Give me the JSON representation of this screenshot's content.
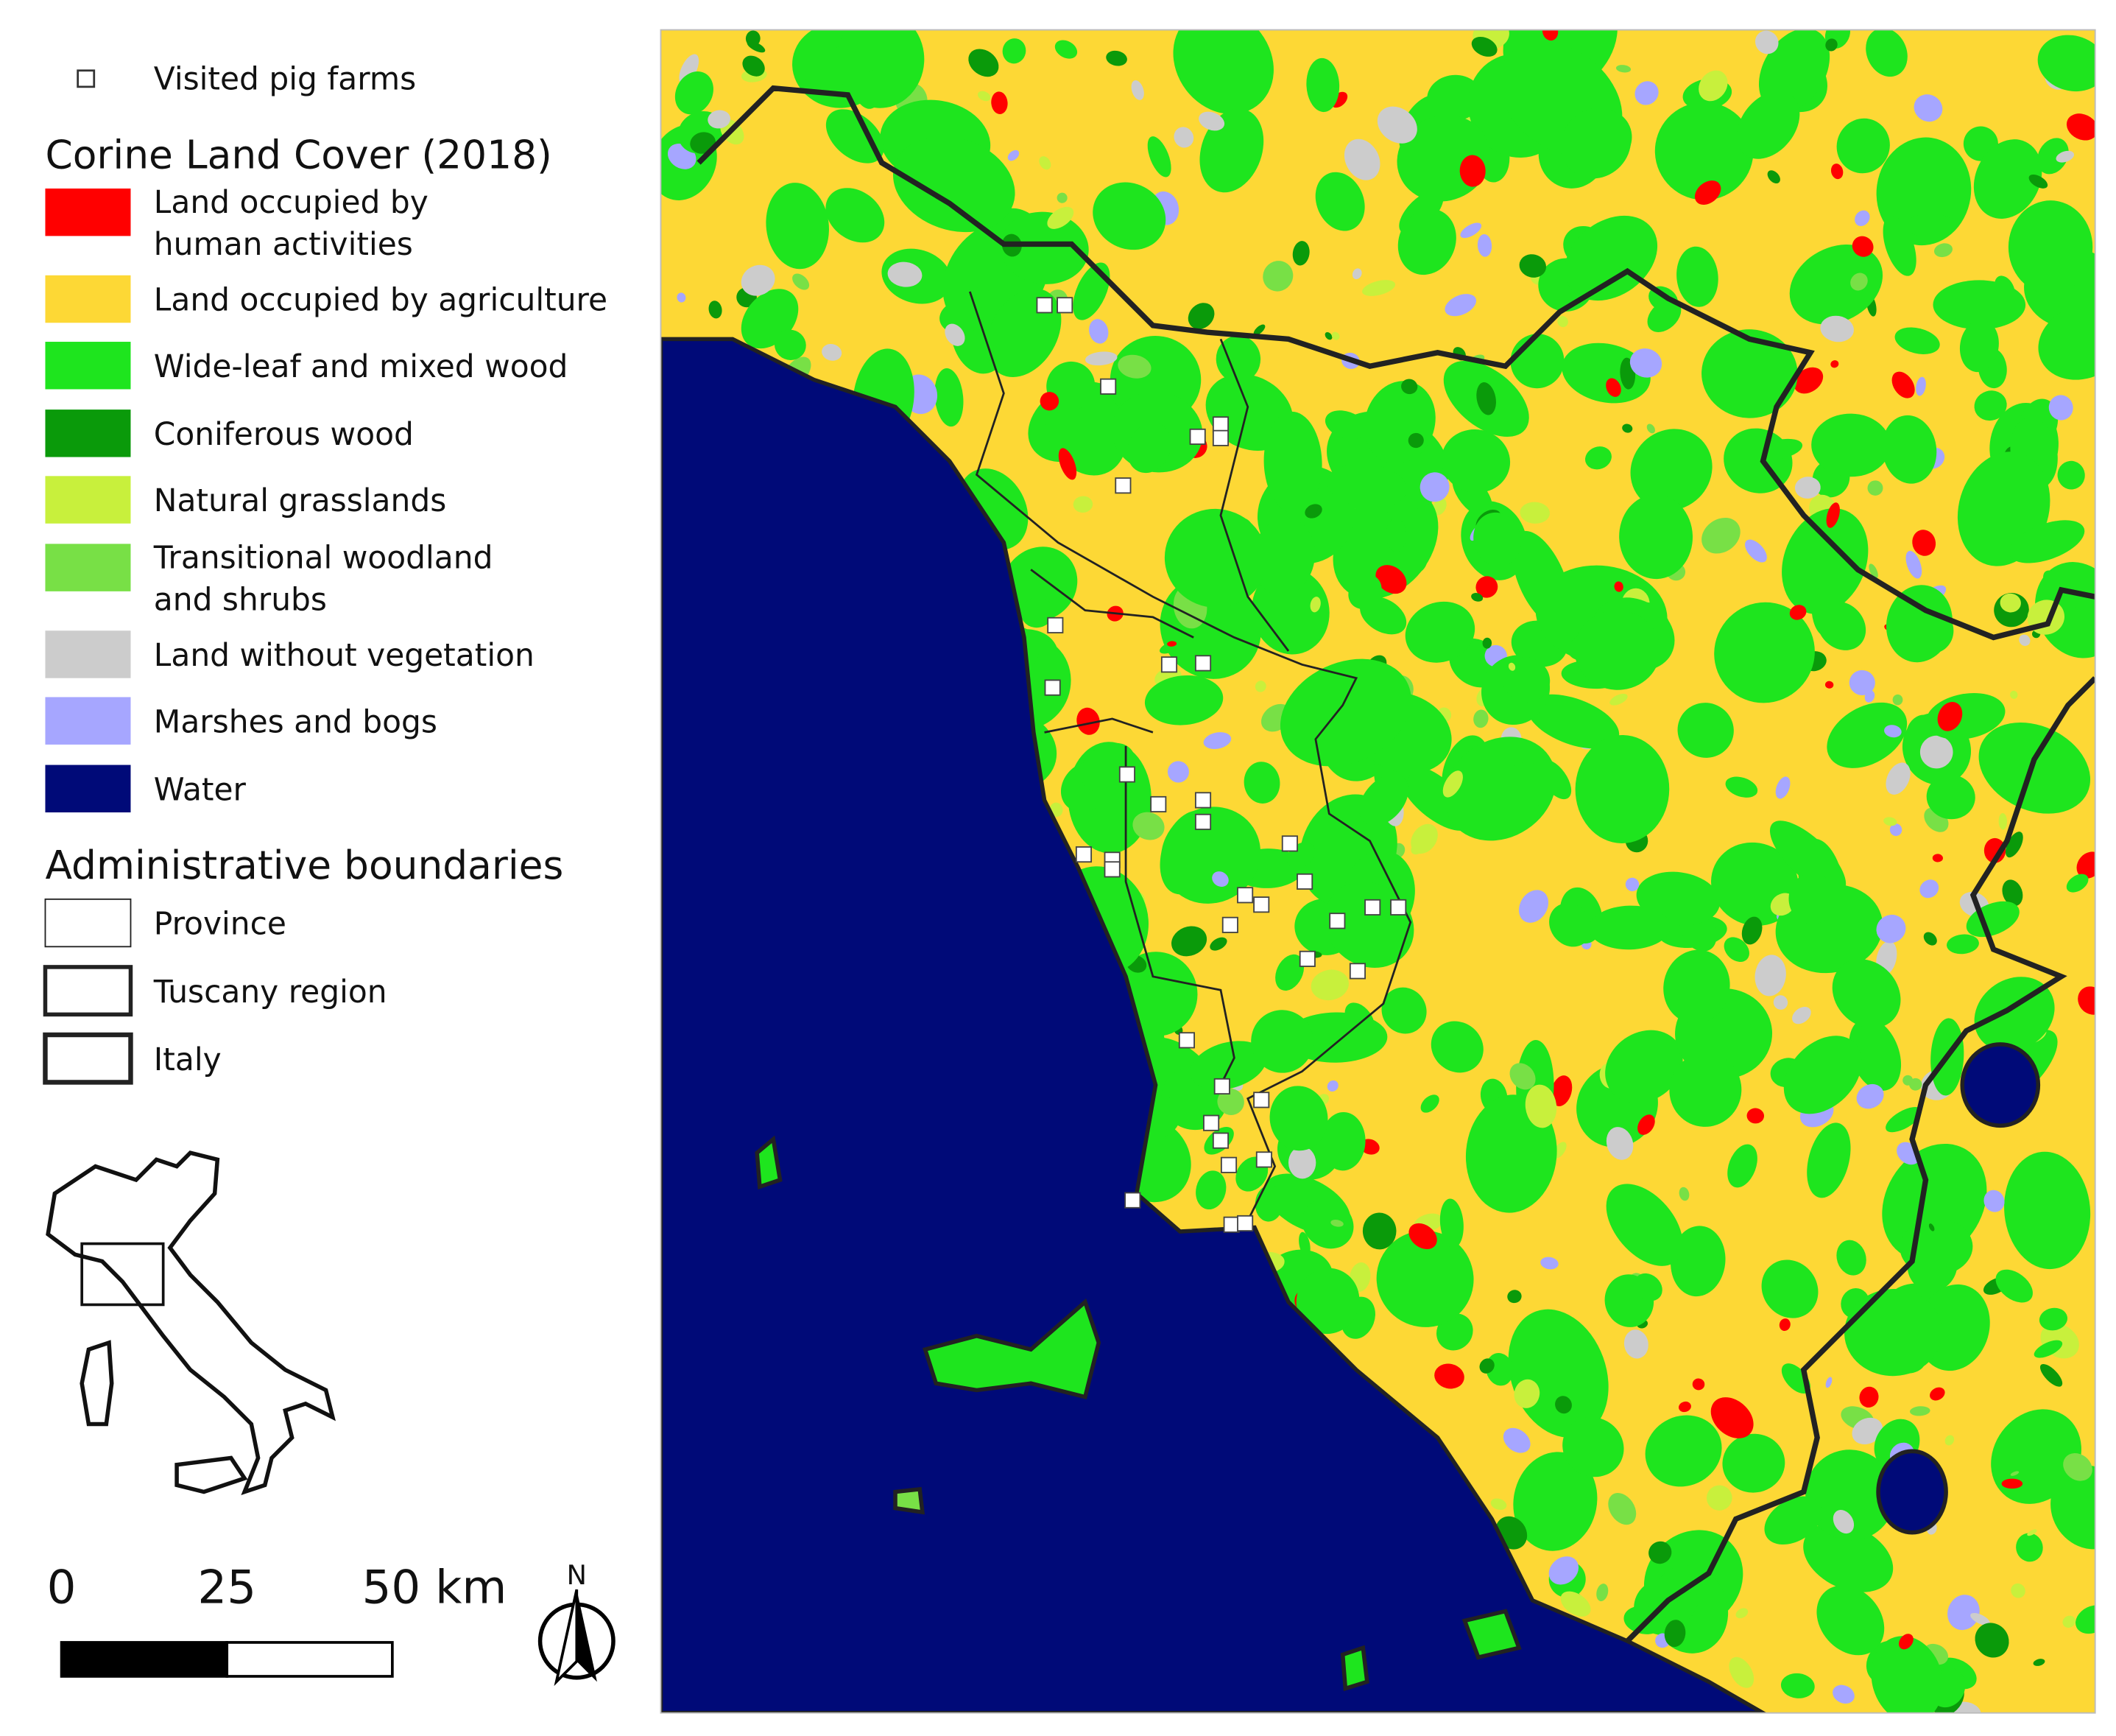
{
  "legend": {
    "farms": "Visited pig farms",
    "land_cover": {
      "title": "Corine Land Cover (2018)",
      "items": [
        {
          "label": [
            "Land occupied by",
            "human activities"
          ],
          "color": "#ff0000"
        },
        {
          "label": [
            "Land occupied by agriculture"
          ],
          "color": "#fdd835"
        },
        {
          "label": [
            "Wide-leaf and mixed wood"
          ],
          "color": "#1ee51e"
        },
        {
          "label": [
            "Coniferous wood"
          ],
          "color": "#0a9a0a"
        },
        {
          "label": [
            "Natural grasslands"
          ],
          "color": "#c8f03c"
        },
        {
          "label": [
            "Transitional woodland",
            "and shrubs"
          ],
          "color": "#78e046"
        },
        {
          "label": [
            "Land without vegetation"
          ],
          "color": "#cccccc"
        },
        {
          "label": [
            "Marshes and bogs"
          ],
          "color": "#a6a6ff"
        },
        {
          "label": [
            "Water"
          ],
          "color": "#000a78"
        }
      ]
    },
    "boundaries": {
      "title": "Administrative boundaries",
      "items": [
        "Province",
        "Tuscany region",
        "Italy"
      ]
    }
  },
  "scale_bar": {
    "labels": [
      "0",
      "25",
      "50 km"
    ]
  },
  "north": "N"
}
